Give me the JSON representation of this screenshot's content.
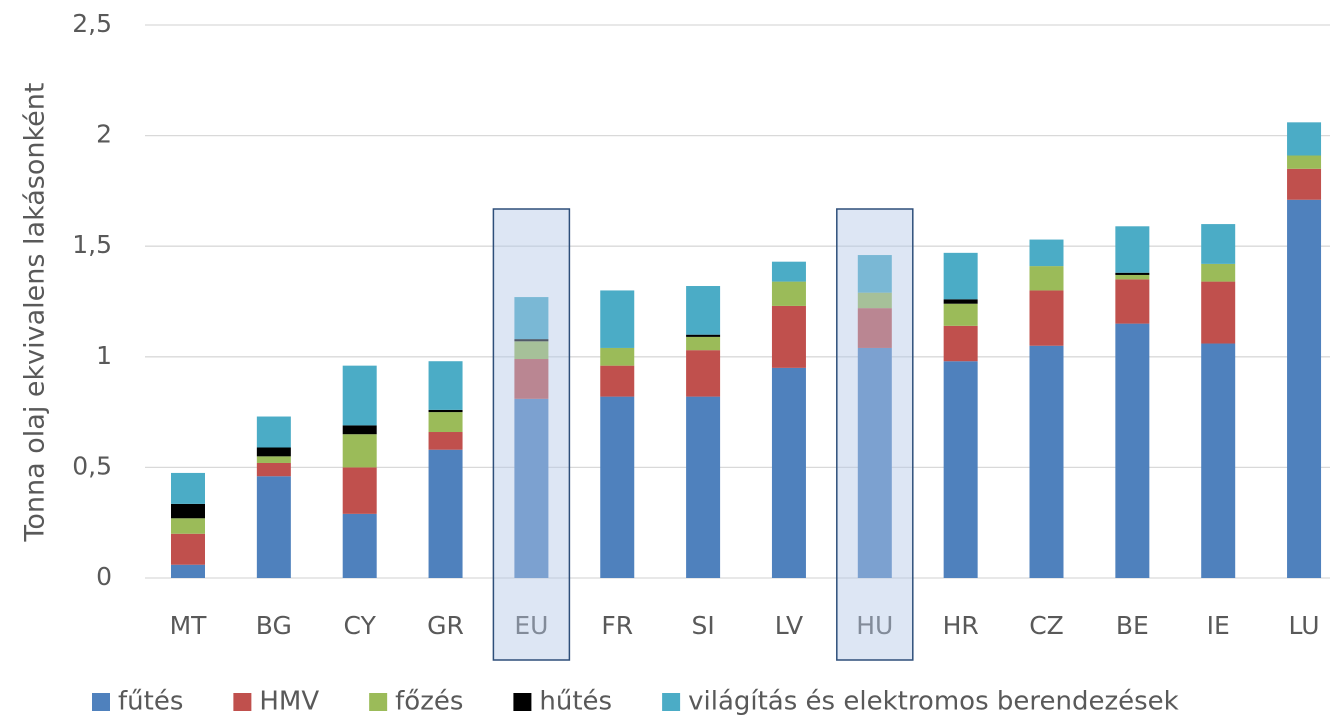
{
  "chart_data": {
    "type": "stacked_bar",
    "ylabel": "Tonna olaj ekvivalens lakásonként",
    "categories": [
      "MT",
      "BG",
      "CY",
      "GR",
      "EU",
      "FR",
      "SI",
      "LV",
      "HU",
      "HR",
      "CZ",
      "BE",
      "IE",
      "LU"
    ],
    "series": [
      {
        "name": "fűtés",
        "color": "#4f81bd",
        "values": [
          0.06,
          0.46,
          0.29,
          0.58,
          0.81,
          0.82,
          0.82,
          0.95,
          1.04,
          0.98,
          1.05,
          1.15,
          1.06,
          1.71
        ]
      },
      {
        "name": "HMV",
        "color": "#c0504d",
        "values": [
          0.14,
          0.06,
          0.21,
          0.08,
          0.18,
          0.14,
          0.21,
          0.28,
          0.18,
          0.16,
          0.25,
          0.2,
          0.28,
          0.14
        ]
      },
      {
        "name": "főzés",
        "color": "#9bbb59",
        "values": [
          0.07,
          0.03,
          0.15,
          0.09,
          0.08,
          0.08,
          0.06,
          0.11,
          0.07,
          0.1,
          0.11,
          0.02,
          0.08,
          0.06
        ]
      },
      {
        "name": "hűtés",
        "color": "#000000",
        "values": [
          0.065,
          0.04,
          0.04,
          0.01,
          0.01,
          0,
          0.01,
          0,
          0,
          0.02,
          0,
          0.01,
          0,
          0
        ]
      },
      {
        "name": "világítás és elektromos berendezések",
        "color": "#4bacc6",
        "values": [
          0.14,
          0.14,
          0.27,
          0.22,
          0.19,
          0.26,
          0.22,
          0.09,
          0.17,
          0.21,
          0.12,
          0.21,
          0.18,
          0.15
        ]
      }
    ],
    "ylim": [
      0,
      2.5
    ],
    "yticks": [
      0,
      {
        "value": 0.5,
        "label": "0,5"
      },
      1,
      {
        "value": 1.5,
        "label": "1,5"
      },
      2,
      {
        "value": 2.5,
        "label": "2,5"
      }
    ],
    "grid": true,
    "legend": "bottom",
    "highlighted": [
      "EU",
      "HU"
    ]
  }
}
